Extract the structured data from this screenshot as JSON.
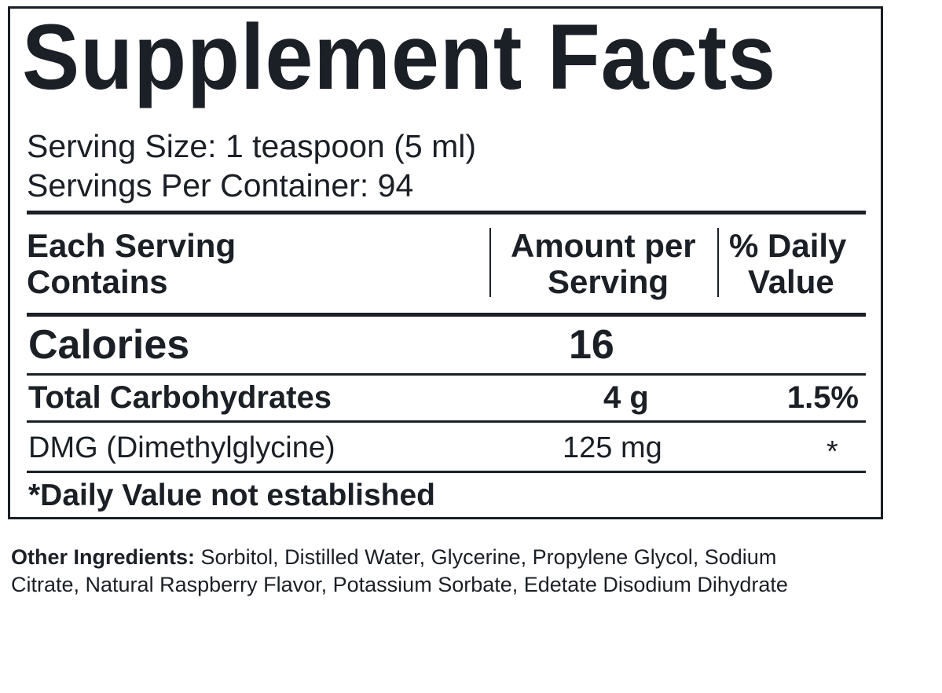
{
  "title": "Supplement Facts",
  "serving_size": "Serving Size: 1 teaspoon (5 ml)",
  "servings_per_container": "Servings Per Container: 94",
  "header": {
    "col1_line1": "Each Serving",
    "col1_line2": "Contains",
    "col2_line1": "Amount per",
    "col2_line2": "Serving",
    "col3_line1": "% Daily",
    "col3_line2": "Value"
  },
  "rows": [
    {
      "name": "Calories",
      "amount": "16",
      "dv": ""
    },
    {
      "name": "Total Carbohydrates",
      "amount": "4 g",
      "dv": "1.5%"
    },
    {
      "name": "DMG (Dimethylglycine)",
      "amount": "125 mg",
      "dv": "*"
    }
  ],
  "footnote": "*Daily Value not established",
  "other_ingredients": {
    "label": "Other Ingredients:",
    "line1": " Sorbitol, Distilled Water, Glycerine, Propylene Glycol, Sodium",
    "line2": "Citrate, Natural Raspberry Flavor, Potassium Sorbate, Edetate Disodium Dihydrate"
  },
  "colors": {
    "text": "#1b1f26",
    "background": "#ffffff"
  }
}
